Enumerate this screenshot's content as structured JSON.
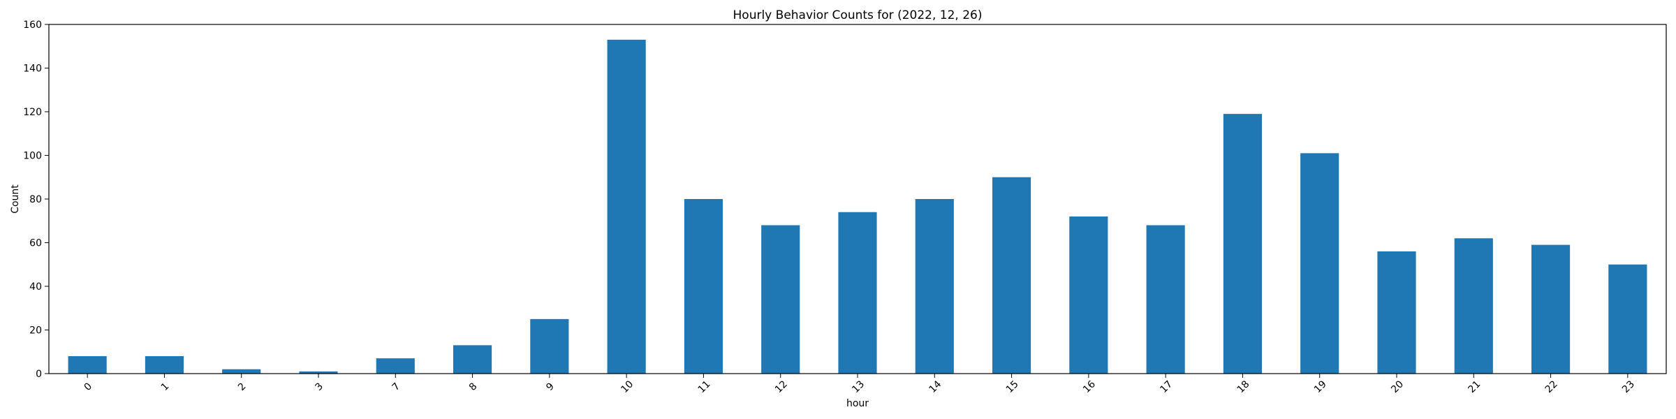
{
  "chart_data": {
    "type": "bar",
    "title": "Hourly Behavior Counts for (2022, 12, 26)",
    "xlabel": "hour",
    "ylabel": "Count",
    "categories": [
      "0",
      "1",
      "2",
      "3",
      "7",
      "8",
      "9",
      "10",
      "11",
      "12",
      "13",
      "14",
      "15",
      "16",
      "17",
      "18",
      "19",
      "20",
      "21",
      "22",
      "23"
    ],
    "values": [
      8,
      8,
      2,
      1,
      7,
      13,
      25,
      153,
      80,
      68,
      74,
      80,
      90,
      72,
      68,
      119,
      101,
      56,
      62,
      59,
      50
    ],
    "ylim": [
      0,
      160
    ],
    "yticks": [
      0,
      20,
      40,
      60,
      80,
      100,
      120,
      140,
      160
    ],
    "grid": false,
    "legend": "none",
    "bar_color": "#1f77b4",
    "x_tick_rotation_deg": 45
  }
}
